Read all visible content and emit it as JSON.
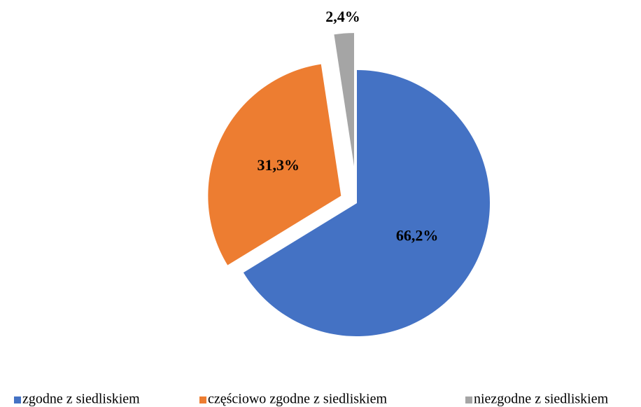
{
  "chart_data": {
    "type": "pie",
    "categories": [
      "zgodne z siedliskiem",
      "częściowo zgodne z siedliskiem",
      "niezgodne z siedliskiem"
    ],
    "values": [
      66.2,
      31.3,
      2.4
    ],
    "value_labels": [
      "66,2%",
      "31,3%",
      "2,4%"
    ],
    "colors": [
      "#4472c4",
      "#ed7d31",
      "#a5a5a5"
    ],
    "legend": "bottom"
  }
}
